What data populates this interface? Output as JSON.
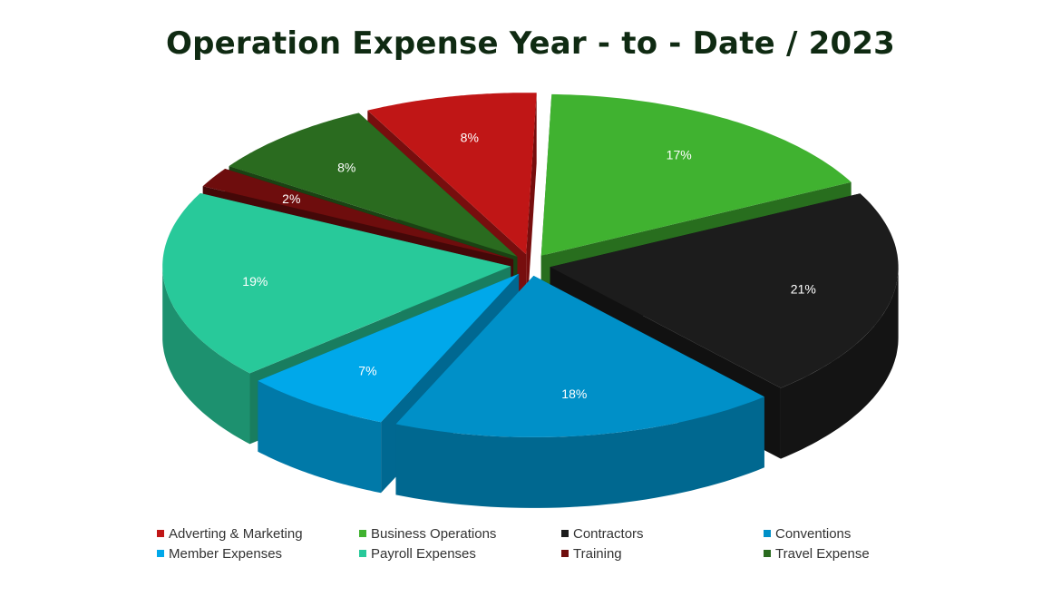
{
  "chart_data": {
    "type": "pie",
    "title": "Operation Expense Year - to - Date / 2023",
    "legend_position": "bottom",
    "slices": [
      {
        "name": "Business Operations",
        "value": 17,
        "label": "17%",
        "color": "#40b230"
      },
      {
        "name": "Contractors",
        "value": 21,
        "label": "21%",
        "color": "#1c1c1c"
      },
      {
        "name": "Conventions",
        "value": 18,
        "label": "18%",
        "color": "#0090c8"
      },
      {
        "name": "Member Expenses",
        "value": 7,
        "label": "7%",
        "color": "#00a8ea"
      },
      {
        "name": "Payroll Expenses",
        "value": 19,
        "label": "19%",
        "color": "#28c99a"
      },
      {
        "name": "Training",
        "value": 2,
        "label": "2%",
        "color": "#6e0d0d"
      },
      {
        "name": "Travel Expense",
        "value": 8,
        "label": "8%",
        "color": "#2a6b1f"
      },
      {
        "name": "Adverting & Marketing",
        "value": 8,
        "label": "8%",
        "color": "#c01616"
      }
    ],
    "legend": [
      {
        "name": "Adverting & Marketing",
        "color": "#c01616"
      },
      {
        "name": "Business Operations",
        "color": "#40b230"
      },
      {
        "name": "Contractors",
        "color": "#1c1c1c"
      },
      {
        "name": "Conventions",
        "color": "#0090c8"
      },
      {
        "name": "Member Expenses",
        "color": "#00a8ea"
      },
      {
        "name": "Payroll Expenses",
        "color": "#28c99a"
      },
      {
        "name": "Training",
        "color": "#6e0d0d"
      },
      {
        "name": "Travel Expense",
        "color": "#2a6b1f"
      }
    ]
  }
}
